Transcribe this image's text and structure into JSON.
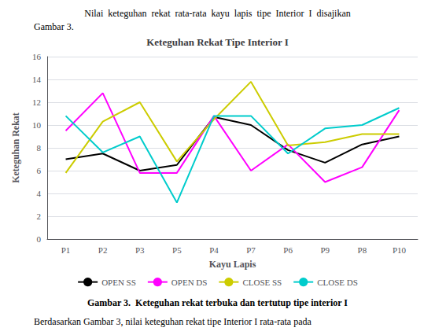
{
  "chart_data": {
    "type": "line",
    "title": "Keteguhan Rekat Tipe Interior I",
    "xlabel": "Kayu Lapis",
    "ylabel": "Keteguhan Rekat",
    "categories": [
      "P1",
      "P2",
      "P3",
      "P5",
      "P4",
      "P7",
      "P6",
      "P9",
      "P8",
      "P10"
    ],
    "series": [
      {
        "name": "OPEN SS",
        "color": "#000000",
        "values": [
          7.0,
          7.5,
          6.0,
          6.5,
          10.7,
          10.0,
          7.8,
          6.7,
          8.3,
          9.0
        ]
      },
      {
        "name": "OPEN DS",
        "color": "#ff00ff",
        "values": [
          9.5,
          12.8,
          5.8,
          5.8,
          10.8,
          6.0,
          8.3,
          5.0,
          6.3,
          11.3
        ]
      },
      {
        "name": "CLOSE SS",
        "color": "#cccc00",
        "values": [
          5.8,
          10.3,
          12.0,
          6.8,
          10.5,
          13.8,
          8.2,
          8.5,
          9.2,
          9.2
        ]
      },
      {
        "name": "CLOSE DS",
        "color": "#00cccc",
        "values": [
          10.8,
          7.6,
          9.0,
          3.2,
          10.8,
          10.8,
          7.5,
          9.7,
          10.0,
          11.5
        ]
      }
    ],
    "ylim": [
      0,
      16
    ],
    "yticks": [
      0,
      2,
      4,
      6,
      8,
      10,
      12,
      14,
      16
    ],
    "grid": true,
    "legend": "bottom",
    "annotations": [
      "Nilai  keteguhan  rekat  rata-rata  kayu  lapis  tipe  Interior  I  disajikan",
      "Gambar 3.",
      "Gambar 3.  Keteguhan rekat terbuka dan tertutup tipe interior I",
      "Berdasarkan Gambar 3, nilai keteguhan rekat tipe Interior I rata-rata pada"
    ]
  }
}
